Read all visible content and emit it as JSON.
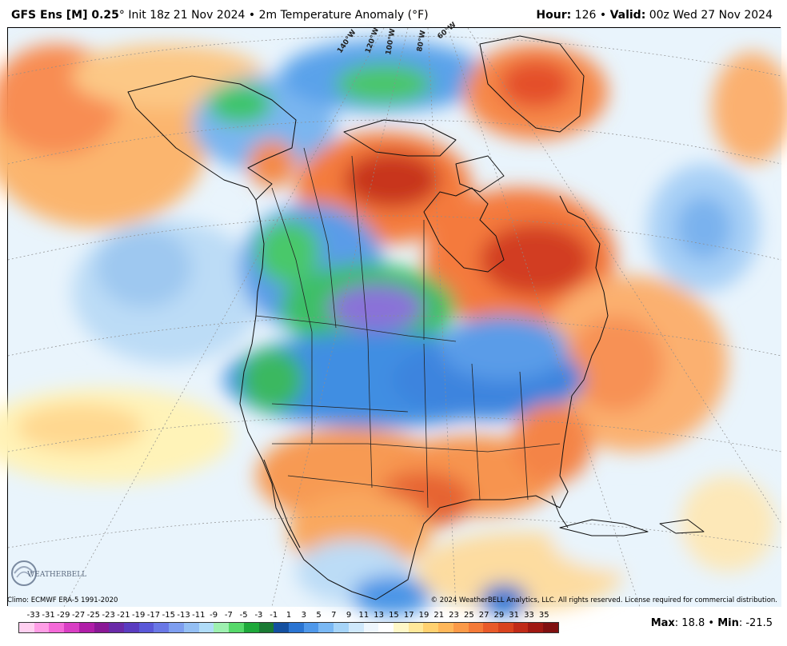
{
  "header": {
    "model": "GFS Ens [M] 0.25",
    "degree": "°",
    "init": " Init 18z 21 Nov 2024",
    "bullet": " • ",
    "field": "2m Temperature Anomaly (°F)",
    "hour_label": "Hour:",
    "hour_value": " 126 ",
    "valid_label": "Valid:",
    "valid_value": " 00z Wed 27 Nov 2024"
  },
  "map": {
    "meridian_labels": [
      "140°W",
      "120°W",
      "100°W",
      "80°W",
      "60°W"
    ],
    "logo_text": "WEATHERBELL"
  },
  "footer": {
    "climo": "Climo: ECMWF ERA-5 1991-2020",
    "copyright": "© 2024 WeatherBELL Analytics, LLC. All rights reserved. License required for commercial distribution.",
    "max_label": "Max",
    "max_value": ": 18.8 • ",
    "min_label": "Min",
    "min_value": ": -21.5"
  },
  "colorbar": {
    "labels": [
      "-33",
      "-31",
      "-29",
      "-27",
      "-25",
      "-23",
      "-21",
      "-19",
      "-17",
      "-15",
      "-13",
      "-11",
      "-9",
      "-7",
      "-5",
      "-3",
      "-1",
      "1",
      "3",
      "5",
      "7",
      "9",
      "11",
      "13",
      "15",
      "17",
      "19",
      "21",
      "23",
      "25",
      "27",
      "29",
      "31",
      "33",
      "35"
    ],
    "colors": [
      "#ffd0f0",
      "#ff9ee6",
      "#f46ad8",
      "#d93ec4",
      "#b01ea8",
      "#8a1896",
      "#6a2aa8",
      "#5a3cc0",
      "#5a58d8",
      "#6a78e6",
      "#7e9ef0",
      "#94bff4",
      "#b0dcf8",
      "#9ef0b0",
      "#56d86a",
      "#1ea83a",
      "#1a7a34",
      "#1450a0",
      "#2a74d2",
      "#4f98ea",
      "#7ab8f4",
      "#a6d4f8",
      "#cfe8fb",
      "#eef6fd",
      "#ffffff",
      "#fff8c8",
      "#ffe89a",
      "#ffd170",
      "#ffb75a",
      "#fb9a48",
      "#f47a38",
      "#e85a2a",
      "#d8421e",
      "#c02a18",
      "#a01812",
      "#801010"
    ]
  }
}
